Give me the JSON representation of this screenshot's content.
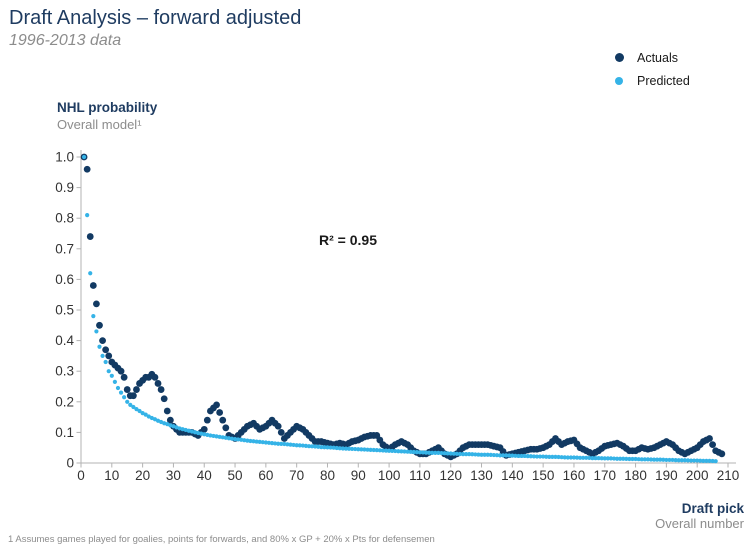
{
  "page": {
    "title": "Draft Analysis – forward adjusted",
    "subtitle": "1996-2013 data",
    "footnote": "1 Assumes games played for goalies, points for forwards, and 80% x GP + 20% x Pts for defensemen"
  },
  "colors": {
    "title_navy": "#1f3c61",
    "subtitle_gray": "#8c8c8c",
    "actuals_navy": "#123a63",
    "predicted_blue": "#35b3e7",
    "axis_line": "#b3b3b3",
    "tick_text": "#333333",
    "annotation_text": "#1a1a1a"
  },
  "chart_data": {
    "type": "scatter",
    "xlabel": "Draft pick",
    "xlabel_sub": "Overall number",
    "ylabel": "NHL probability",
    "ylabel_sub": "Overall model¹",
    "annotation": "R² = 0.95",
    "legend_position": "top-right",
    "grid": false,
    "xlim": [
      0,
      210
    ],
    "ylim": [
      0,
      1.0
    ],
    "x_ticks": [
      0,
      10,
      20,
      30,
      40,
      50,
      60,
      70,
      80,
      90,
      100,
      110,
      120,
      130,
      140,
      150,
      160,
      170,
      180,
      190,
      200,
      210
    ],
    "y_ticks": [
      "0",
      "0.1",
      "0.2",
      "0.3",
      "0.4",
      "0.5",
      "0.6",
      "0.7",
      "0.8",
      "0.9",
      "1.0"
    ],
    "x": [
      1,
      2,
      3,
      4,
      5,
      6,
      7,
      8,
      9,
      10,
      11,
      12,
      13,
      14,
      15,
      16,
      17,
      18,
      19,
      20,
      21,
      22,
      23,
      24,
      25,
      26,
      27,
      28,
      29,
      30,
      32,
      34,
      36,
      38,
      40,
      42,
      44,
      46,
      48,
      50,
      52,
      54,
      56,
      58,
      60,
      62,
      64,
      66,
      68,
      70,
      72,
      74,
      76,
      78,
      80,
      82,
      84,
      86,
      88,
      90,
      92,
      94,
      96,
      98,
      100,
      102,
      104,
      106,
      108,
      110,
      112,
      114,
      116,
      118,
      120,
      122,
      124,
      126,
      128,
      130,
      132,
      134,
      136,
      138,
      140,
      142,
      144,
      146,
      148,
      150,
      152,
      154,
      156,
      158,
      160,
      162,
      164,
      166,
      168,
      170,
      172,
      174,
      176,
      178,
      180,
      182,
      184,
      186,
      188,
      190,
      192,
      194,
      196,
      198,
      200,
      202,
      204,
      206,
      208,
      210
    ],
    "series": [
      {
        "name": "Actuals",
        "color": "#123a63",
        "radius": 3.4,
        "dense": false,
        "values": [
          1.0,
          0.96,
          0.74,
          0.58,
          0.52,
          0.45,
          0.4,
          0.37,
          0.35,
          0.33,
          0.32,
          0.31,
          0.3,
          0.28,
          0.24,
          0.22,
          0.22,
          0.24,
          0.26,
          0.27,
          0.28,
          0.28,
          0.29,
          0.28,
          0.26,
          0.24,
          0.21,
          0.17,
          0.14,
          0.12,
          0.1,
          0.1,
          0.1,
          0.09,
          0.11,
          0.17,
          0.19,
          0.14,
          0.09,
          0.08,
          0.1,
          0.12,
          0.13,
          0.11,
          0.12,
          0.14,
          0.12,
          0.08,
          0.1,
          0.12,
          0.11,
          0.09,
          0.07,
          0.07,
          0.065,
          0.06,
          0.065,
          0.06,
          0.07,
          0.075,
          0.085,
          0.09,
          0.09,
          0.06,
          0.045,
          0.06,
          0.07,
          0.06,
          0.04,
          0.03,
          0.03,
          0.04,
          0.05,
          0.03,
          0.02,
          0.03,
          0.05,
          0.06,
          0.06,
          0.06,
          0.06,
          0.055,
          0.05,
          0.025,
          0.03,
          0.035,
          0.04,
          0.045,
          0.045,
          0.05,
          0.06,
          0.08,
          0.06,
          0.07,
          0.075,
          0.05,
          0.04,
          0.03,
          0.04,
          0.055,
          0.06,
          0.065,
          0.055,
          0.04,
          0.04,
          0.05,
          0.045,
          0.05,
          0.06,
          0.07,
          0.06,
          0.04,
          0.03,
          0.04,
          0.05,
          0.07,
          0.08,
          0.04,
          0.03,
          null
        ]
      },
      {
        "name": "Predicted",
        "color": "#35b3e7",
        "radius": 2.1,
        "dense": true,
        "values": [
          1.0,
          0.81,
          0.62,
          0.48,
          0.43,
          0.38,
          0.35,
          0.33,
          0.3,
          0.285,
          0.265,
          0.245,
          0.23,
          0.215,
          0.2,
          0.19,
          0.183,
          0.176,
          0.17,
          0.163,
          0.158,
          0.152,
          0.147,
          0.143,
          0.138,
          0.134,
          0.13,
          0.127,
          0.123,
          0.12,
          0.113,
          0.108,
          0.103,
          0.098,
          0.094,
          0.09,
          0.087,
          0.084,
          0.081,
          0.078,
          0.076,
          0.073,
          0.071,
          0.069,
          0.067,
          0.065,
          0.063,
          0.062,
          0.06,
          0.058,
          0.057,
          0.055,
          0.054,
          0.052,
          0.051,
          0.05,
          0.048,
          0.047,
          0.046,
          0.045,
          0.044,
          0.043,
          0.042,
          0.041,
          0.04,
          0.039,
          0.038,
          0.037,
          0.036,
          0.035,
          0.034,
          0.033,
          0.033,
          0.032,
          0.031,
          0.03,
          0.029,
          0.029,
          0.028,
          0.027,
          0.027,
          0.026,
          0.025,
          0.025,
          0.024,
          0.023,
          0.023,
          0.022,
          0.021,
          0.021,
          0.02,
          0.02,
          0.019,
          0.018,
          0.018,
          0.017,
          0.017,
          0.016,
          0.016,
          0.015,
          0.015,
          0.014,
          0.014,
          0.013,
          0.013,
          0.012,
          0.012,
          0.011,
          0.011,
          0.01,
          0.01,
          0.009,
          0.009,
          0.008,
          0.008,
          0.007,
          0.007,
          0.006,
          null,
          null
        ]
      }
    ]
  }
}
